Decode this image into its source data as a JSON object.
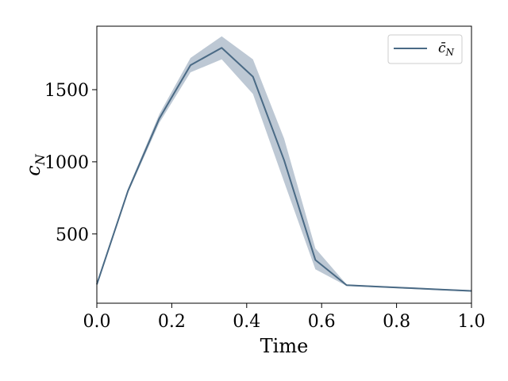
{
  "chart_data": {
    "type": "line",
    "title": "",
    "xlabel": "Time",
    "ylabel": "c",
    "ylabel_sub": "N",
    "xlim": [
      0.0,
      1.0
    ],
    "ylim": [
      20,
      1940
    ],
    "xticks": [
      0.0,
      0.2,
      0.4,
      0.6,
      0.8,
      1.0
    ],
    "xtick_labels": [
      "0.0",
      "0.2",
      "0.4",
      "0.6",
      "0.8",
      "1.0"
    ],
    "yticks": [
      500,
      1000,
      1500
    ],
    "ytick_labels": [
      "500",
      "1000",
      "1500"
    ],
    "grid": false,
    "legend_position": "top-right",
    "series": [
      {
        "name": "c̄",
        "name_sub": "N",
        "color": "#4a6a85",
        "band_color": "#9aabbd",
        "x": [
          0.0,
          0.0833,
          0.1667,
          0.25,
          0.3333,
          0.4167,
          0.5,
          0.5833,
          0.6667,
          0.75,
          0.8333,
          0.9167,
          1.0
        ],
        "y": [
          150,
          800,
          1300,
          1670,
          1790,
          1590,
          1010,
          320,
          145,
          135,
          125,
          115,
          105
        ],
        "y_upper": [
          160,
          815,
          1330,
          1720,
          1870,
          1710,
          1160,
          400,
          150,
          140,
          130,
          120,
          110
        ],
        "y_lower": [
          140,
          785,
          1270,
          1620,
          1710,
          1470,
          860,
          255,
          140,
          130,
          120,
          110,
          100
        ]
      }
    ]
  }
}
